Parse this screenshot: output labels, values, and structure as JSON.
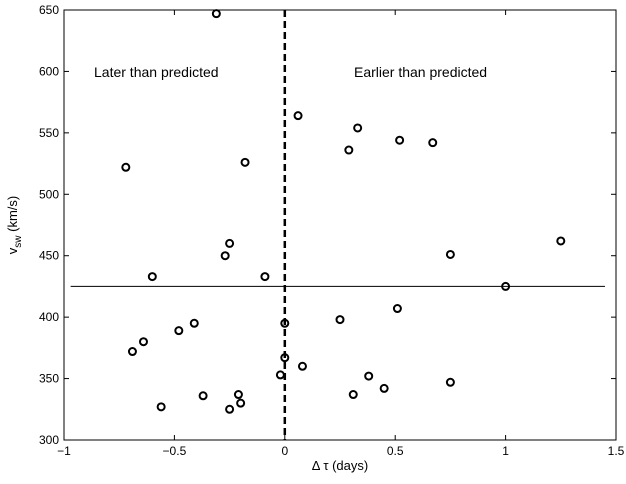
{
  "chart_data": {
    "type": "scatter",
    "xlabel": "Δ τ (days)",
    "ylabel": {
      "main": "v",
      "subscript": "sw",
      "unit": " (km/s)"
    },
    "xlim": [
      -1,
      1.5
    ],
    "ylim": [
      300,
      650
    ],
    "xticks": [
      -1,
      -0.5,
      0,
      0.5,
      1,
      1.5
    ],
    "xtick_labels": [
      "−1",
      "−0.5",
      "0",
      "0.5",
      "1",
      "1.5"
    ],
    "yticks": [
      300,
      350,
      400,
      450,
      500,
      550,
      600,
      650
    ],
    "ytick_labels": [
      "300",
      "350",
      "400",
      "450",
      "500",
      "550",
      "600",
      "650"
    ],
    "grid": false,
    "legend": "none",
    "annotations": {
      "left": "Later than predicted",
      "right": "Earlier than predicted"
    },
    "reference_lines": {
      "horizontal_y": 425,
      "horizontal_x_range": [
        -0.97,
        1.45
      ],
      "vertical_x": 0,
      "vertical_style": "dashed"
    },
    "marker": {
      "shape": "open-circle",
      "color": "#000000"
    },
    "points": [
      {
        "x": -0.31,
        "y": 647
      },
      {
        "x": -0.72,
        "y": 522
      },
      {
        "x": -0.18,
        "y": 526
      },
      {
        "x": 0.06,
        "y": 564
      },
      {
        "x": 0.33,
        "y": 554
      },
      {
        "x": 0.29,
        "y": 536
      },
      {
        "x": 0.52,
        "y": 544
      },
      {
        "x": 0.67,
        "y": 542
      },
      {
        "x": -0.25,
        "y": 460
      },
      {
        "x": -0.27,
        "y": 450
      },
      {
        "x": -0.6,
        "y": 433
      },
      {
        "x": -0.09,
        "y": 433
      },
      {
        "x": 0.75,
        "y": 451
      },
      {
        "x": 1.25,
        "y": 462
      },
      {
        "x": 1.0,
        "y": 425
      },
      {
        "x": -0.41,
        "y": 395
      },
      {
        "x": -0.48,
        "y": 389
      },
      {
        "x": -0.64,
        "y": 380
      },
      {
        "x": -0.69,
        "y": 372
      },
      {
        "x": 0.0,
        "y": 395
      },
      {
        "x": 0.25,
        "y": 398
      },
      {
        "x": 0.51,
        "y": 407
      },
      {
        "x": 0.0,
        "y": 367
      },
      {
        "x": 0.08,
        "y": 360
      },
      {
        "x": -0.02,
        "y": 353
      },
      {
        "x": 0.38,
        "y": 352
      },
      {
        "x": 0.45,
        "y": 342
      },
      {
        "x": 0.75,
        "y": 347
      },
      {
        "x": 0.31,
        "y": 337
      },
      {
        "x": -0.37,
        "y": 336
      },
      {
        "x": -0.21,
        "y": 337
      },
      {
        "x": -0.2,
        "y": 330
      },
      {
        "x": -0.25,
        "y": 325
      },
      {
        "x": -0.56,
        "y": 327
      }
    ]
  }
}
